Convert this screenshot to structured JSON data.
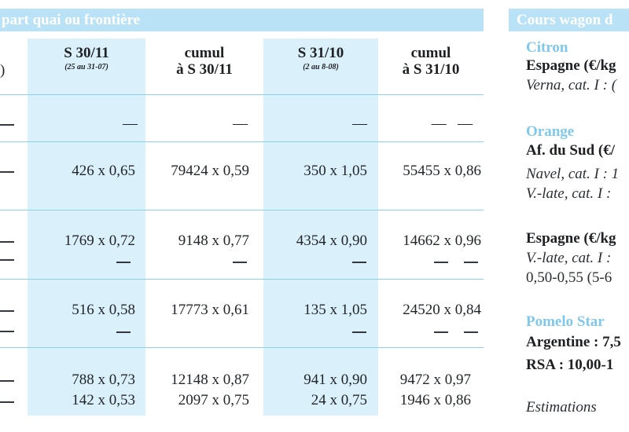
{
  "table": {
    "header_text": "part quai ou frontière",
    "col_partial_left": ")",
    "columns": [
      {
        "title": "S 30/11",
        "subtitle": "(25 au 31-07)"
      },
      {
        "title": "cumul",
        "subtitle_line": "à S 30/11"
      },
      {
        "title": "S 31/10",
        "subtitle": "(2 au 8-08)"
      },
      {
        "title": "cumul",
        "subtitle_line": "à S 31/10"
      }
    ],
    "dash_glyph": "—",
    "rows": [
      {
        "c1": "—",
        "c2": "—",
        "c3": "—",
        "c4": "—"
      },
      {
        "c1": "426 x 0,65",
        "c2": "79424 x 0,59",
        "c3": "350 x 1,05",
        "c4": "55455 x 0,86"
      },
      {
        "c1": "1769 x 0,72",
        "c2": "9148 x 0,77",
        "c3": "4354 x 0,90",
        "c4": "14662 x 0,96"
      },
      {
        "c1": "516 x 0,58",
        "c2": "17773 x 0,61",
        "c3": "135 x 1,05",
        "c4": "24520 x 0,84"
      },
      {
        "c1": "788 x 0,73",
        "c2": "12148 x 0,87",
        "c3": "941 x 0,90",
        "c4": "9472 x 0,97"
      },
      {
        "c1": "142 x 0,53",
        "c2": "2097 x 0,75",
        "c3": "24 x 0,75",
        "c4": "1946 x 0,86"
      }
    ]
  },
  "side": {
    "header": "Cours wagon d",
    "citron": "Citron",
    "citron_country": "Espagne (€/kg",
    "citron_variety": "Verna, cat. I : (",
    "orange": "Orange",
    "orange_country": "Af. du Sud (€/",
    "orange_v1": "Navel, cat. I : 1",
    "orange_v2": "V.-late, cat. I :",
    "orange_country2": "Espagne (€/kg",
    "orange_v3": "V.-late,  cat. I :",
    "orange_v4": "0,50-0,55 (5-6",
    "pomelo": "Pomelo Star",
    "pomelo_arg": "Argentine : 7,5",
    "pomelo_rsa": "RSA : 10,00-1",
    "estimations": "Estimations"
  },
  "colors": {
    "header_bg": "#b9e2f6",
    "highlight_col": "#daf0fb",
    "rule": "#8fcfee",
    "fruit_label": "#7fc8ec"
  }
}
